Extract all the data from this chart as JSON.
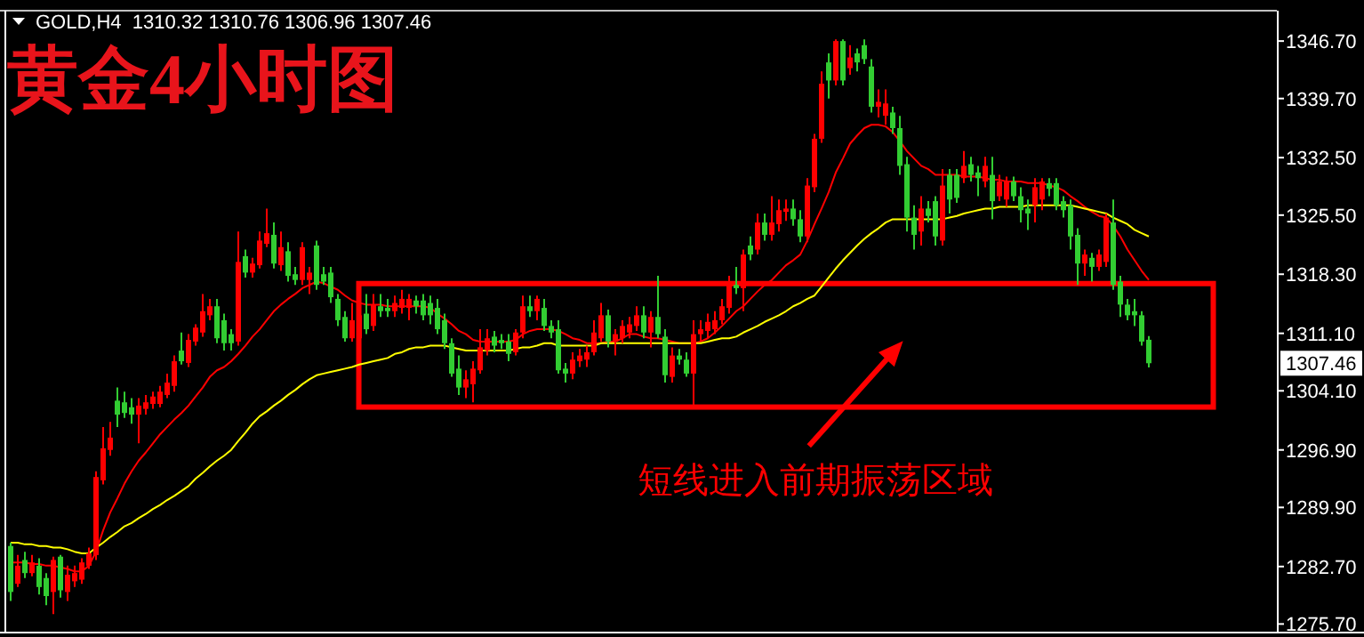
{
  "chart_data": {
    "type": "candlestick",
    "title": "黄金4小时图",
    "subtitle": "GOLD,H4  1310.32 1310.76 1306.96 1307.46",
    "categories": [
      null,
      null,
      null,
      null,
      null,
      null,
      null,
      null,
      null,
      null,
      null,
      null,
      null,
      null,
      null,
      null,
      null,
      null,
      null,
      null,
      null,
      null,
      null,
      null,
      null,
      null,
      null,
      null,
      null,
      null,
      null,
      null,
      null,
      null,
      null,
      null,
      null,
      null,
      null,
      null,
      null,
      null,
      null,
      null,
      null,
      null,
      null,
      null,
      null,
      null,
      null,
      null,
      null,
      null,
      null,
      null,
      null,
      null,
      null,
      null,
      null,
      null,
      null,
      null,
      null,
      null,
      null,
      null,
      null,
      null,
      null,
      null,
      null,
      null,
      null,
      null,
      null,
      null,
      null,
      null,
      null,
      null,
      null,
      null,
      null,
      null,
      null,
      null,
      null,
      null,
      null,
      null,
      null,
      null,
      null,
      null,
      null,
      null,
      null,
      null,
      null,
      null,
      null,
      null,
      null,
      null,
      null,
      null,
      null,
      null,
      null,
      null,
      null,
      null,
      null,
      null,
      null,
      null,
      null,
      null,
      null,
      null,
      null,
      null,
      null,
      null,
      null,
      null,
      null,
      null,
      null,
      null,
      null,
      null,
      null,
      null,
      null,
      null,
      null,
      null,
      null,
      null,
      null,
      null,
      null,
      null,
      null,
      null,
      null,
      null,
      null,
      null,
      null,
      null,
      null,
      null,
      null,
      null,
      null,
      null,
      null
    ],
    "ohlc": [
      [
        1285.2,
        1285.6,
        1278.5,
        1279.6
      ],
      [
        1280.6,
        1284.1,
        1280.2,
        1282.8
      ],
      [
        1283.5,
        1284.5,
        1281.3,
        1281.9
      ],
      [
        1281.9,
        1284.1,
        1281.5,
        1283.2
      ],
      [
        1282.8,
        1283.7,
        1279.3,
        1280.2
      ],
      [
        1281.3,
        1281.9,
        1278.0,
        1279.1
      ],
      [
        1279.6,
        1283.9,
        1276.9,
        1283.5
      ],
      [
        1283.9,
        1284.1,
        1278.9,
        1279.8
      ],
      [
        1279.6,
        1282.8,
        1278.5,
        1281.7
      ],
      [
        1280.9,
        1282.8,
        1280.2,
        1281.9
      ],
      [
        1281.1,
        1283.7,
        1280.6,
        1283.2
      ],
      [
        1282.8,
        1285.0,
        1282.4,
        1284.3
      ],
      [
        1284.1,
        1294.3,
        1283.5,
        1293.6
      ],
      [
        1293.2,
        1299.7,
        1292.7,
        1297.1
      ],
      [
        1296.9,
        1300.3,
        1296.2,
        1298.4
      ],
      [
        1302.9,
        1304.5,
        1299.7,
        1301.2
      ],
      [
        1302.7,
        1304.0,
        1300.8,
        1301.4
      ],
      [
        1302.1,
        1303.2,
        1300.1,
        1301.2
      ],
      [
        1301.2,
        1303.2,
        1297.7,
        1302.3
      ],
      [
        1301.9,
        1303.6,
        1301.2,
        1302.7
      ],
      [
        1302.5,
        1304.0,
        1301.9,
        1303.4
      ],
      [
        1302.5,
        1304.7,
        1302.1,
        1304.0
      ],
      [
        1303.6,
        1306.2,
        1303.2,
        1305.1
      ],
      [
        1304.7,
        1308.4,
        1304.0,
        1307.7
      ],
      [
        1309.0,
        1311.2,
        1307.3,
        1307.7
      ],
      [
        1307.5,
        1311.0,
        1307.0,
        1310.3
      ],
      [
        1310.1,
        1312.2,
        1309.6,
        1311.8
      ],
      [
        1311.2,
        1315.9,
        1310.7,
        1313.8
      ],
      [
        1313.3,
        1315.3,
        1312.7,
        1314.4
      ],
      [
        1314.4,
        1315.3,
        1309.9,
        1310.5
      ],
      [
        1312.7,
        1313.5,
        1309.0,
        1309.9
      ],
      [
        1311.0,
        1311.6,
        1309.0,
        1309.9
      ],
      [
        1310.1,
        1323.5,
        1309.6,
        1319.8
      ],
      [
        1320.5,
        1321.3,
        1317.9,
        1318.5
      ],
      [
        1318.5,
        1320.3,
        1317.9,
        1319.6
      ],
      [
        1319.4,
        1323.5,
        1319.0,
        1322.4
      ],
      [
        1322.0,
        1326.3,
        1321.6,
        1323.3
      ],
      [
        1323.1,
        1324.6,
        1319.0,
        1319.6
      ],
      [
        1319.4,
        1323.5,
        1318.7,
        1321.6
      ],
      [
        1321.1,
        1322.2,
        1317.4,
        1318.1
      ],
      [
        1318.3,
        1319.2,
        1317.0,
        1317.6
      ],
      [
        1317.6,
        1322.2,
        1317.0,
        1321.6
      ],
      [
        1317.6,
        1319.2,
        1315.9,
        1318.5
      ],
      [
        1321.8,
        1322.4,
        1316.4,
        1317.0
      ],
      [
        1318.3,
        1319.2,
        1317.0,
        1317.4
      ],
      [
        1318.5,
        1319.2,
        1314.8,
        1315.5
      ],
      [
        1315.3,
        1315.9,
        1312.0,
        1312.7
      ],
      [
        1313.1,
        1313.8,
        1310.1,
        1310.5
      ],
      [
        1310.5,
        1314.8,
        1310.1,
        1312.7
      ],
      [
        1310.5,
        1314.4,
        1309.9,
        1313.3
      ],
      [
        1313.5,
        1315.9,
        1311.0,
        1311.6
      ],
      [
        1312.0,
        1315.9,
        1311.4,
        1314.6
      ],
      [
        1314.4,
        1315.9,
        1313.1,
        1313.8
      ],
      [
        1314.2,
        1315.3,
        1313.1,
        1313.8
      ],
      [
        1313.8,
        1315.7,
        1313.1,
        1314.8
      ],
      [
        1314.2,
        1316.4,
        1313.5,
        1315.3
      ],
      [
        1314.2,
        1315.9,
        1312.7,
        1315.3
      ],
      [
        1315.1,
        1315.7,
        1313.5,
        1314.4
      ],
      [
        1315.1,
        1315.9,
        1312.7,
        1313.3
      ],
      [
        1314.8,
        1315.7,
        1312.2,
        1313.3
      ],
      [
        1314.2,
        1315.3,
        1311.0,
        1311.6
      ],
      [
        1312.7,
        1313.5,
        1309.2,
        1309.9
      ],
      [
        1309.9,
        1310.5,
        1305.8,
        1306.2
      ],
      [
        1306.8,
        1308.4,
        1303.6,
        1304.5
      ],
      [
        1304.5,
        1306.6,
        1303.2,
        1305.5
      ],
      [
        1304.9,
        1307.7,
        1302.7,
        1306.8
      ],
      [
        1306.6,
        1311.6,
        1306.2,
        1309.4
      ],
      [
        1309.0,
        1311.6,
        1308.4,
        1310.5
      ],
      [
        1310.7,
        1311.4,
        1308.8,
        1309.6
      ],
      [
        1310.3,
        1311.0,
        1309.2,
        1309.9
      ],
      [
        1310.1,
        1311.0,
        1307.7,
        1308.6
      ],
      [
        1308.8,
        1311.6,
        1308.4,
        1311.2
      ],
      [
        1311.2,
        1315.7,
        1310.5,
        1314.4
      ],
      [
        1314.4,
        1315.7,
        1313.1,
        1313.8
      ],
      [
        1313.8,
        1315.7,
        1312.7,
        1315.3
      ],
      [
        1314.2,
        1315.3,
        1311.4,
        1312.0
      ],
      [
        1312.0,
        1312.7,
        1310.5,
        1311.2
      ],
      [
        1311.6,
        1312.7,
        1306.2,
        1306.6
      ],
      [
        1306.8,
        1307.5,
        1305.1,
        1306.2
      ],
      [
        1306.2,
        1308.8,
        1305.5,
        1307.9
      ],
      [
        1307.7,
        1309.2,
        1307.0,
        1308.4
      ],
      [
        1307.9,
        1309.6,
        1307.0,
        1308.8
      ],
      [
        1308.8,
        1312.7,
        1308.4,
        1311.2
      ],
      [
        1310.5,
        1314.8,
        1310.1,
        1313.3
      ],
      [
        1313.3,
        1314.0,
        1309.4,
        1310.1
      ],
      [
        1310.1,
        1311.6,
        1308.4,
        1311.0
      ],
      [
        1310.5,
        1312.7,
        1309.9,
        1312.0
      ],
      [
        1311.2,
        1313.1,
        1310.5,
        1312.2
      ],
      [
        1312.0,
        1314.4,
        1311.4,
        1313.3
      ],
      [
        1313.3,
        1314.4,
        1310.5,
        1311.2
      ],
      [
        1311.2,
        1313.8,
        1309.4,
        1313.1
      ],
      [
        1313.1,
        1318.1,
        1310.5,
        1311.0
      ],
      [
        1310.7,
        1311.6,
        1305.1,
        1306.0
      ],
      [
        1305.8,
        1309.4,
        1305.1,
        1308.4
      ],
      [
        1308.4,
        1309.2,
        1307.3,
        1307.9
      ],
      [
        1307.9,
        1308.8,
        1305.8,
        1306.2
      ],
      [
        1306.2,
        1312.7,
        1302.3,
        1311.0
      ],
      [
        1311.0,
        1312.7,
        1310.1,
        1311.6
      ],
      [
        1311.4,
        1313.5,
        1310.5,
        1312.5
      ],
      [
        1311.6,
        1313.8,
        1311.0,
        1312.7
      ],
      [
        1312.7,
        1315.3,
        1312.2,
        1314.4
      ],
      [
        1314.2,
        1318.1,
        1313.5,
        1317.0
      ],
      [
        1317.0,
        1319.2,
        1315.9,
        1316.6
      ],
      [
        1316.6,
        1321.3,
        1313.8,
        1320.7
      ],
      [
        1321.8,
        1322.9,
        1320.0,
        1320.7
      ],
      [
        1321.3,
        1325.7,
        1320.7,
        1324.6
      ],
      [
        1324.6,
        1325.7,
        1322.4,
        1323.1
      ],
      [
        1323.1,
        1327.8,
        1322.4,
        1324.6
      ],
      [
        1324.4,
        1327.4,
        1323.5,
        1326.1
      ],
      [
        1325.9,
        1327.4,
        1324.8,
        1326.3
      ],
      [
        1326.3,
        1327.4,
        1324.2,
        1325.0
      ],
      [
        1325.0,
        1326.1,
        1322.2,
        1322.9
      ],
      [
        1322.9,
        1330.0,
        1322.2,
        1329.1
      ],
      [
        1328.9,
        1335.4,
        1328.3,
        1334.8
      ],
      [
        1334.8,
        1343.0,
        1334.3,
        1341.5
      ],
      [
        1344.1,
        1345.2,
        1339.7,
        1341.9
      ],
      [
        1341.9,
        1346.9,
        1341.3,
        1346.7
      ],
      [
        1346.7,
        1346.9,
        1341.3,
        1341.9
      ],
      [
        1343.4,
        1346.2,
        1342.6,
        1344.7
      ],
      [
        1345.2,
        1345.8,
        1343.0,
        1344.1
      ],
      [
        1346.2,
        1346.9,
        1343.9,
        1344.5
      ],
      [
        1343.6,
        1344.5,
        1338.0,
        1338.7
      ],
      [
        1338.7,
        1340.8,
        1337.4,
        1339.3
      ],
      [
        1337.6,
        1340.8,
        1336.5,
        1339.1
      ],
      [
        1338.0,
        1338.7,
        1335.4,
        1336.1
      ],
      [
        1336.1,
        1337.6,
        1330.4,
        1331.5
      ],
      [
        1331.7,
        1332.6,
        1323.5,
        1325.2
      ],
      [
        1325.2,
        1326.7,
        1321.3,
        1323.1
      ],
      [
        1323.5,
        1327.8,
        1321.8,
        1326.3
      ],
      [
        1326.3,
        1327.2,
        1324.6,
        1325.4
      ],
      [
        1327.2,
        1327.8,
        1321.8,
        1322.9
      ],
      [
        1322.4,
        1331.1,
        1321.8,
        1329.1
      ],
      [
        1330.4,
        1331.1,
        1325.7,
        1327.4
      ],
      [
        1330.4,
        1331.1,
        1327.0,
        1327.6
      ],
      [
        1330.0,
        1333.3,
        1329.4,
        1331.5
      ],
      [
        1331.7,
        1332.6,
        1329.6,
        1330.4
      ],
      [
        1330.7,
        1331.5,
        1327.8,
        1330.0
      ],
      [
        1329.6,
        1332.6,
        1328.9,
        1331.5
      ],
      [
        1330.4,
        1332.6,
        1325.0,
        1327.2
      ],
      [
        1327.8,
        1330.4,
        1327.2,
        1329.6
      ],
      [
        1327.4,
        1330.2,
        1326.5,
        1329.6
      ],
      [
        1329.6,
        1330.2,
        1327.2,
        1327.8
      ],
      [
        1327.8,
        1328.9,
        1324.6,
        1326.1
      ],
      [
        1326.3,
        1327.4,
        1323.7,
        1325.7
      ],
      [
        1326.7,
        1330.0,
        1324.6,
        1328.9
      ],
      [
        1327.4,
        1330.0,
        1326.1,
        1329.6
      ],
      [
        1329.4,
        1330.0,
        1327.8,
        1328.7
      ],
      [
        1329.4,
        1330.0,
        1326.1,
        1326.7
      ],
      [
        1327.2,
        1327.8,
        1325.2,
        1326.1
      ],
      [
        1326.7,
        1327.4,
        1321.3,
        1322.9
      ],
      [
        1323.1,
        1323.9,
        1317.0,
        1319.6
      ],
      [
        1319.6,
        1321.3,
        1318.1,
        1320.7
      ],
      [
        1320.3,
        1320.9,
        1317.4,
        1319.2
      ],
      [
        1319.2,
        1321.3,
        1318.7,
        1320.7
      ],
      [
        1319.8,
        1325.7,
        1319.2,
        1325.2
      ],
      [
        1324.6,
        1327.4,
        1316.4,
        1317.0
      ],
      [
        1317.4,
        1318.1,
        1313.1,
        1314.6
      ],
      [
        1314.6,
        1315.3,
        1312.7,
        1313.3
      ],
      [
        1313.8,
        1315.3,
        1312.0,
        1313.3
      ],
      [
        1313.3,
        1313.8,
        1309.6,
        1310.1
      ],
      [
        1310.32,
        1310.76,
        1306.96,
        1307.46
      ]
    ],
    "colors": [
      "#32cd32",
      "#ff0000",
      "#32cd32",
      "#ff0000",
      "#32cd32",
      "#32cd32",
      "#ff0000",
      "#32cd32",
      "#ff0000",
      "#ff0000",
      "#ff0000",
      "#ff0000",
      "#ff0000",
      "#ff0000",
      "#ff0000",
      "#32cd32",
      "#32cd32",
      "#32cd32",
      "#ff0000",
      "#ff0000",
      "#ff0000",
      "#ff0000",
      "#ff0000",
      "#ff0000",
      "#32cd32",
      "#ff0000",
      "#ff0000",
      "#ff0000",
      "#ff0000",
      "#32cd32",
      "#32cd32",
      "#32cd32",
      "#ff0000",
      "#32cd32",
      "#ff0000",
      "#ff0000",
      "#ff0000",
      "#32cd32",
      "#ff0000",
      "#32cd32",
      "#32cd32",
      "#ff0000",
      "#ff0000",
      "#32cd32",
      "#32cd32",
      "#32cd32",
      "#32cd32",
      "#32cd32",
      "#ff0000",
      "#ff0000",
      "#32cd32",
      "#ff0000",
      "#32cd32",
      "#32cd32",
      "#ff0000",
      "#ff0000",
      "#ff0000",
      "#32cd32",
      "#32cd32",
      "#32cd32",
      "#32cd32",
      "#32cd32",
      "#32cd32",
      "#32cd32",
      "#ff0000",
      "#ff0000",
      "#ff0000",
      "#ff0000",
      "#32cd32",
      "#32cd32",
      "#32cd32",
      "#ff0000",
      "#ff0000",
      "#32cd32",
      "#ff0000",
      "#32cd32",
      "#32cd32",
      "#32cd32",
      "#32cd32",
      "#ff0000",
      "#ff0000",
      "#ff0000",
      "#ff0000",
      "#ff0000",
      "#32cd32",
      "#ff0000",
      "#ff0000",
      "#ff0000",
      "#ff0000",
      "#32cd32",
      "#ff0000",
      "#32cd32",
      "#32cd32",
      "#ff0000",
      "#32cd32",
      "#32cd32",
      "#ff0000",
      "#ff0000",
      "#ff0000",
      "#ff0000",
      "#ff0000",
      "#ff0000",
      "#32cd32",
      "#ff0000",
      "#32cd32",
      "#ff0000",
      "#32cd32",
      "#ff0000",
      "#ff0000",
      "#ff0000",
      "#32cd32",
      "#32cd32",
      "#ff0000",
      "#ff0000",
      "#ff0000",
      "#32cd32",
      "#ff0000",
      "#32cd32",
      "#ff0000",
      "#32cd32",
      "#32cd32",
      "#32cd32",
      "#ff0000",
      "#ff0000",
      "#32cd32",
      "#32cd32",
      "#32cd32",
      "#32cd32",
      "#ff0000",
      "#32cd32",
      "#32cd32",
      "#ff0000",
      "#32cd32",
      "#32cd32",
      "#ff0000",
      "#32cd32",
      "#32cd32",
      "#ff0000",
      "#32cd32",
      "#ff0000",
      "#ff0000",
      "#32cd32",
      "#32cd32",
      "#32cd32",
      "#ff0000",
      "#ff0000",
      "#32cd32",
      "#32cd32",
      "#32cd32",
      "#32cd32",
      "#32cd32",
      "#ff0000",
      "#32cd32",
      "#ff0000",
      "#ff0000",
      "#32cd32",
      "#32cd32",
      "#32cd32",
      "#32cd32",
      "#32cd32",
      "#32cd32"
    ],
    "series": [
      {
        "type": "line",
        "color": "#ff0000",
        "values": [
          1283.2,
          1283.2,
          1283.2,
          1283.0,
          1283.0,
          1282.8,
          1282.8,
          1282.6,
          1282.4,
          1282.1,
          1282.1,
          1282.8,
          1284.5,
          1287.1,
          1289.3,
          1291.0,
          1292.8,
          1294.3,
          1295.6,
          1296.6,
          1297.7,
          1298.8,
          1299.7,
          1300.6,
          1301.4,
          1302.3,
          1303.4,
          1304.5,
          1305.8,
          1306.6,
          1307.0,
          1307.7,
          1308.6,
          1309.6,
          1310.7,
          1311.6,
          1312.7,
          1313.8,
          1314.6,
          1315.3,
          1315.9,
          1316.6,
          1317.0,
          1317.4,
          1317.2,
          1316.8,
          1316.4,
          1315.7,
          1315.1,
          1314.8,
          1314.6,
          1314.6,
          1314.6,
          1314.4,
          1314.4,
          1314.4,
          1314.4,
          1314.4,
          1314.4,
          1314.2,
          1313.5,
          1312.9,
          1312.2,
          1311.4,
          1311.0,
          1310.3,
          1310.1,
          1310.1,
          1310.1,
          1310.1,
          1310.1,
          1310.3,
          1311.0,
          1311.4,
          1311.6,
          1311.6,
          1311.6,
          1311.4,
          1311.0,
          1310.5,
          1310.3,
          1309.9,
          1309.9,
          1309.9,
          1310.1,
          1310.1,
          1310.5,
          1311.0,
          1311.0,
          1310.7,
          1310.5,
          1310.5,
          1310.3,
          1310.1,
          1309.9,
          1309.9,
          1309.9,
          1310.1,
          1310.5,
          1311.2,
          1312.0,
          1312.9,
          1313.8,
          1314.4,
          1315.3,
          1316.2,
          1317.0,
          1317.6,
          1318.5,
          1319.4,
          1320.0,
          1320.7,
          1322.4,
          1324.4,
          1326.3,
          1328.3,
          1330.7,
          1332.4,
          1334.2,
          1335.2,
          1336.1,
          1336.5,
          1336.5,
          1336.3,
          1335.6,
          1334.5,
          1333.3,
          1332.4,
          1331.5,
          1331.1,
          1330.4,
          1330.4,
          1330.4,
          1330.4,
          1330.2,
          1330.2,
          1330.2,
          1330.0,
          1329.8,
          1329.8,
          1329.6,
          1329.6,
          1329.6,
          1329.4,
          1329.4,
          1329.4,
          1329.1,
          1328.9,
          1328.5,
          1327.8,
          1327.2,
          1326.5,
          1325.9,
          1325.4,
          1325.2,
          1324.2,
          1322.9,
          1321.3,
          1320.0,
          1318.7,
          1317.6
        ]
      },
      {
        "type": "line",
        "color": "#ffff00",
        "values": [
          1285.6,
          1285.6,
          1285.4,
          1285.4,
          1285.2,
          1285.2,
          1285.0,
          1285.0,
          1284.8,
          1284.5,
          1284.3,
          1284.3,
          1285.0,
          1285.6,
          1286.3,
          1286.9,
          1287.6,
          1288.0,
          1288.6,
          1289.1,
          1289.7,
          1290.2,
          1290.8,
          1291.3,
          1291.9,
          1292.5,
          1293.4,
          1294.1,
          1294.9,
          1295.6,
          1296.2,
          1296.9,
          1298.0,
          1299.0,
          1300.1,
          1301.0,
          1301.6,
          1302.3,
          1302.9,
          1303.6,
          1304.2,
          1304.9,
          1305.5,
          1306.0,
          1306.2,
          1306.4,
          1306.6,
          1306.8,
          1307.0,
          1307.3,
          1307.5,
          1307.7,
          1307.9,
          1308.1,
          1308.6,
          1308.8,
          1309.2,
          1309.4,
          1309.4,
          1309.6,
          1309.6,
          1309.6,
          1309.4,
          1309.2,
          1309.0,
          1309.0,
          1309.0,
          1309.0,
          1309.0,
          1309.0,
          1309.0,
          1309.2,
          1309.4,
          1309.4,
          1309.6,
          1309.9,
          1309.9,
          1309.6,
          1309.6,
          1309.6,
          1309.6,
          1309.6,
          1309.6,
          1309.9,
          1309.9,
          1309.9,
          1309.9,
          1309.9,
          1309.9,
          1309.9,
          1309.9,
          1309.9,
          1309.9,
          1309.9,
          1309.9,
          1309.9,
          1309.9,
          1309.9,
          1310.1,
          1310.3,
          1310.5,
          1310.5,
          1310.7,
          1311.2,
          1311.6,
          1312.0,
          1312.5,
          1312.9,
          1313.3,
          1313.8,
          1314.4,
          1314.8,
          1315.3,
          1315.7,
          1316.8,
          1317.9,
          1319.0,
          1320.0,
          1320.9,
          1321.8,
          1322.6,
          1323.3,
          1323.9,
          1324.6,
          1325.0,
          1325.0,
          1325.0,
          1325.0,
          1325.0,
          1325.0,
          1325.0,
          1325.0,
          1325.2,
          1325.4,
          1325.7,
          1325.9,
          1326.1,
          1326.3,
          1326.3,
          1326.5,
          1326.5,
          1326.5,
          1326.5,
          1326.7,
          1326.7,
          1326.7,
          1326.7,
          1326.7,
          1326.7,
          1326.7,
          1326.5,
          1326.3,
          1326.1,
          1325.9,
          1325.7,
          1325.2,
          1324.8,
          1324.4,
          1323.7,
          1323.3,
          1322.9
        ]
      }
    ],
    "ylim": [
      1275.2,
      1350.4
    ],
    "yticks": [
      {
        "value": 1346.7,
        "label": "1346.70"
      },
      {
        "value": 1339.7,
        "label": "1339.70"
      },
      {
        "value": 1332.5,
        "label": "1332.50"
      },
      {
        "value": 1325.5,
        "label": "1325.50"
      },
      {
        "value": 1318.3,
        "label": "1318.30"
      },
      {
        "value": 1311.1,
        "label": "1311.10"
      },
      {
        "value": 1304.1,
        "label": "1304.10"
      },
      {
        "value": 1296.9,
        "label": "1296.90"
      },
      {
        "value": 1289.9,
        "label": "1289.90"
      },
      {
        "value": 1282.7,
        "label": "1282.70"
      },
      {
        "value": 1275.7,
        "label": "1275.70"
      }
    ],
    "annotations": [
      "短线进入前期振荡区域",
      "1307.46"
    ],
    "grid": false
  }
}
